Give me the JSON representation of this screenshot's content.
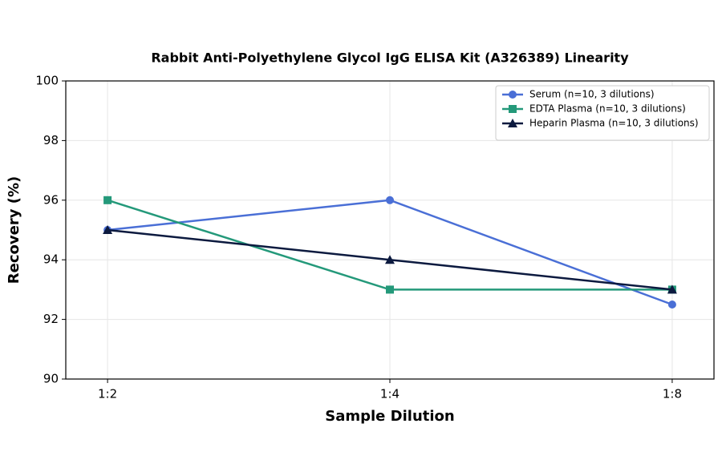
{
  "chart_data": {
    "type": "line",
    "title": "Rabbit Anti-Polyethylene Glycol IgG ELISA Kit (A326389) Linearity",
    "x_label": "Sample Dilution",
    "y_label": "Recovery (%)",
    "categories": [
      "1:2",
      "1:4",
      "1:8"
    ],
    "series": [
      {
        "name": "Serum (n=10, 3 dilutions)",
        "color": "#4a6fd6",
        "marker": "circle",
        "values": [
          95,
          96,
          92.5
        ]
      },
      {
        "name": "EDTA Plasma (n=10, 3 dilutions)",
        "color": "#24997a",
        "marker": "square",
        "values": [
          96,
          93,
          93
        ]
      },
      {
        "name": "Heparin Plasma (n=10, 3 dilutions)",
        "color": "#0c1a3f",
        "marker": "triangle",
        "values": [
          95,
          94,
          93
        ]
      }
    ],
    "ylim": [
      90,
      100
    ],
    "yticks": [
      90,
      92,
      94,
      96,
      98,
      100
    ],
    "grid": true,
    "legend": "upper-right"
  }
}
